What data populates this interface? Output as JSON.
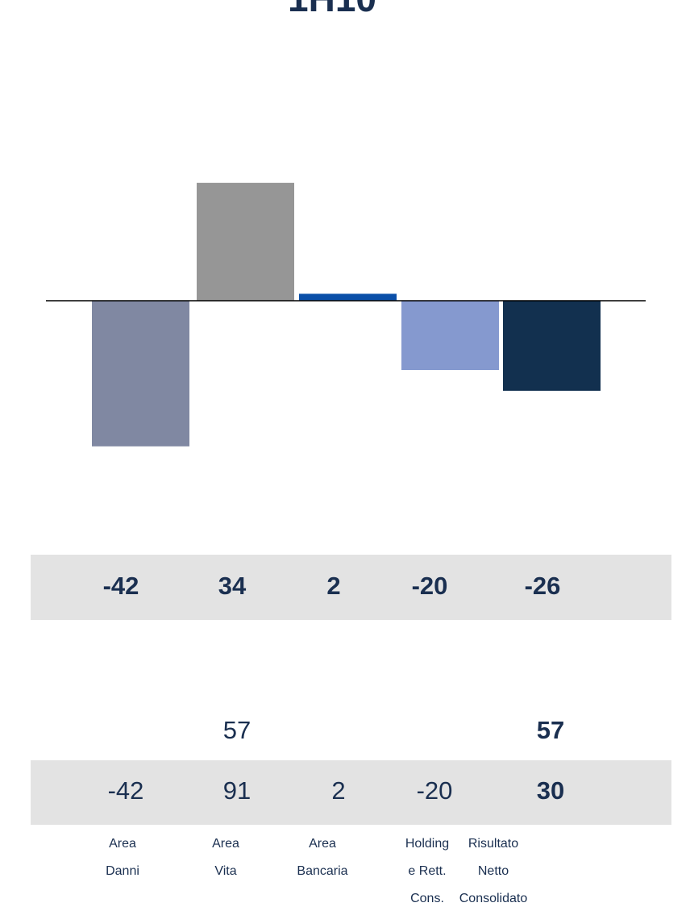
{
  "chart_data": {
    "type": "bar",
    "title": "1H10",
    "categories": [
      [
        "Area",
        "Danni"
      ],
      [
        "Area",
        "Vita"
      ],
      [
        "Area",
        "Bancaria"
      ],
      [
        "Holding",
        "e Rett.",
        "Cons."
      ],
      [
        "Risultato",
        "Netto",
        "Consolidato"
      ]
    ],
    "values": [
      -42,
      34,
      2,
      -20,
      -26
    ],
    "colors": [
      "#8088a2",
      "#969696",
      "#0a4fa8",
      "#8599cf",
      "#12304f"
    ]
  },
  "table": {
    "rows": [
      {
        "values": [
          null,
          57,
          null,
          null,
          57
        ],
        "bold": [
          false,
          false,
          false,
          false,
          true
        ],
        "shaded": false
      },
      {
        "values": [
          -42,
          91,
          2,
          -20,
          30
        ],
        "bold": [
          false,
          false,
          false,
          false,
          true
        ],
        "shaded": true
      }
    ]
  }
}
